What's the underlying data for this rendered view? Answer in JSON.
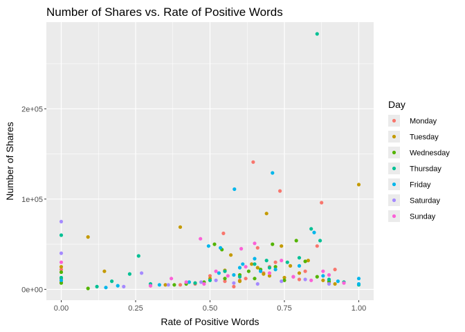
{
  "chart_data": {
    "type": "scatter",
    "title": "Number of Shares vs. Rate of Positive Words",
    "xlabel": "Rate of Positive Words",
    "ylabel": "Number of Shares",
    "xlim": [
      -0.05,
      1.05
    ],
    "ylim": [
      -12000,
      296000
    ],
    "x_ticks": [
      {
        "value": 0.0,
        "label": "0.00"
      },
      {
        "value": 0.25,
        "label": "0.25"
      },
      {
        "value": 0.5,
        "label": "0.50"
      },
      {
        "value": 0.75,
        "label": "0.75"
      },
      {
        "value": 1.0,
        "label": "1.00"
      }
    ],
    "y_ticks": [
      {
        "value": 0,
        "label": "0e+00"
      },
      {
        "value": 100000,
        "label": "1e+05"
      },
      {
        "value": 200000,
        "label": "2e+05"
      }
    ],
    "grid": true,
    "background": "#ebebeb",
    "legend": {
      "title": "Day",
      "position": "right"
    },
    "series": [
      {
        "name": "Monday",
        "color": "#f8766d",
        "x": [
          0.0,
          0.0,
          0.645,
          0.735,
          0.875,
          0.545,
          0.66,
          0.72,
          0.86,
          0.5,
          0.6,
          0.82,
          0.3,
          0.45,
          0.55,
          0.62,
          0.68,
          0.78,
          0.9,
          0.92,
          0.4,
          0.7,
          0.58,
          0.8
        ],
        "y": [
          22000,
          8000,
          141000,
          109000,
          96000,
          62000,
          46000,
          30000,
          48000,
          15000,
          10000,
          20000,
          4000,
          6000,
          9000,
          12000,
          18000,
          14000,
          8000,
          22000,
          5000,
          25000,
          3000,
          11000
        ]
      },
      {
        "name": "Tuesday",
        "color": "#c49a00",
        "x": [
          0.0,
          0.0,
          0.09,
          0.145,
          0.4,
          0.69,
          0.74,
          1.0,
          0.57,
          0.64,
          0.66,
          0.77,
          0.83,
          0.5,
          0.6,
          0.7,
          0.8,
          0.35,
          0.45,
          0.88,
          0.92,
          0.55,
          0.75,
          0.68
        ],
        "y": [
          25000,
          12000,
          58000,
          20000,
          69000,
          84000,
          48000,
          116000,
          38000,
          28000,
          24000,
          26000,
          32000,
          12000,
          9000,
          15000,
          18000,
          5000,
          7000,
          10000,
          6000,
          21000,
          13000,
          17000
        ]
      },
      {
        "name": "Wednesday",
        "color": "#53b400",
        "x": [
          0.0,
          0.0,
          0.09,
          0.515,
          0.54,
          0.71,
          0.79,
          0.63,
          0.67,
          0.82,
          0.55,
          0.6,
          0.75,
          0.48,
          0.38,
          0.42,
          0.86,
          0.9,
          0.72,
          0.65
        ],
        "y": [
          19000,
          7000,
          1000,
          50000,
          44000,
          50000,
          54000,
          20000,
          22000,
          31000,
          12000,
          16000,
          10000,
          8000,
          5000,
          6000,
          14000,
          9000,
          25000,
          12000
        ]
      },
      {
        "name": "Thursday",
        "color": "#00c094",
        "x": [
          0.0,
          0.0,
          0.26,
          0.86,
          0.87,
          0.84,
          0.65,
          0.69,
          0.76,
          0.8,
          0.12,
          0.17,
          0.23,
          0.3,
          0.55,
          0.6,
          0.7,
          0.9,
          0.95,
          1.0,
          0.5,
          0.45
        ],
        "y": [
          60000,
          13000,
          37000,
          283000,
          54000,
          67000,
          28000,
          32000,
          30000,
          35000,
          3000,
          9000,
          17000,
          6000,
          20000,
          14000,
          24000,
          11000,
          8000,
          5000,
          10000,
          7000
        ]
      },
      {
        "name": "Friday",
        "color": "#00b6eb",
        "x": [
          0.0,
          0.582,
          0.71,
          0.85,
          0.495,
          0.535,
          0.61,
          0.65,
          0.72,
          0.8,
          0.53,
          0.58,
          0.6,
          0.67,
          1.0,
          1.0,
          0.15,
          0.19,
          0.33,
          0.43,
          0.88,
          0.93
        ],
        "y": [
          10000,
          111000,
          129000,
          63000,
          48000,
          46000,
          28000,
          34000,
          22000,
          26000,
          18000,
          16000,
          24000,
          20000,
          12000,
          6000,
          2000,
          4000,
          5000,
          8000,
          15000,
          9000
        ]
      },
      {
        "name": "Saturday",
        "color": "#a58aff",
        "x": [
          0.0,
          0.0,
          0.27,
          0.47,
          0.66,
          0.36,
          0.52,
          0.58,
          0.74,
          0.82,
          0.9,
          0.21
        ],
        "y": [
          75000,
          40000,
          18000,
          8000,
          6000,
          5000,
          10000,
          7000,
          9000,
          11000,
          6000,
          3000
        ]
      },
      {
        "name": "Sunday",
        "color": "#fb61d7",
        "x": [
          0.0,
          0.468,
          0.605,
          0.65,
          0.74,
          0.37,
          0.52,
          0.56,
          0.62,
          0.7,
          0.78,
          0.84,
          0.9,
          0.3,
          0.42,
          0.48,
          0.95,
          0.88
        ],
        "y": [
          30000,
          56000,
          45000,
          51000,
          32000,
          12000,
          20000,
          15000,
          25000,
          18000,
          14000,
          10000,
          16000,
          4000,
          8000,
          6000,
          7000,
          20000
        ]
      }
    ]
  }
}
